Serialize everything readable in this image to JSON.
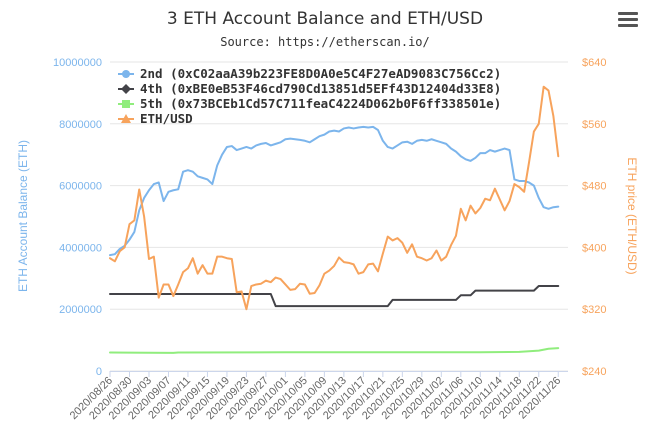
{
  "chart_data": {
    "type": "line",
    "title": "3 ETH Account Balance and ETH/USD",
    "subtitle": "Source: https://etherscan.io/",
    "ylabel_left": "ETH Account Balance (ETH)",
    "ylabel_right": "ETH price (ETH/USD)",
    "ylim_left": [
      0,
      10000000
    ],
    "ylim_right": [
      240,
      640
    ],
    "yticks_left": [
      "0",
      "2000000",
      "4000000",
      "6000000",
      "8000000",
      "10000000"
    ],
    "yticks_right": [
      "$240",
      "$320",
      "$400",
      "$480",
      "$560",
      "$640"
    ],
    "x_start": "2020/08/26",
    "x_end": "2020/11/28",
    "xticks": [
      "2020/08/26",
      "2020/08/30",
      "2020/09/03",
      "2020/09/07",
      "2020/09/11",
      "2020/09/15",
      "2020/09/19",
      "2020/09/23",
      "2020/09/27",
      "2020/10/01",
      "2020/10/05",
      "2020/10/09",
      "2020/10/13",
      "2020/10/17",
      "2020/10/21",
      "2020/10/25",
      "2020/10/29",
      "2020/11/02",
      "2020/11/06",
      "2020/11/10",
      "2020/11/14",
      "2020/11/18",
      "2020/11/22",
      "2020/11/26"
    ],
    "grid": true,
    "legend_position": "top-left",
    "series": [
      {
        "name": "2nd (0xC02aaA39b223FE8D0A0e5C4F27eAD9083C756Cc2)",
        "axis": "left",
        "color": "#7cb5ec",
        "marker": "circle",
        "points": [
          [
            "2020/08/26",
            3750000
          ],
          [
            "2020/08/27",
            3780000
          ],
          [
            "2020/08/28",
            3950000
          ],
          [
            "2020/08/29",
            4050000
          ],
          [
            "2020/08/30",
            4250000
          ],
          [
            "2020/08/31",
            4500000
          ],
          [
            "2020/09/01",
            5200000
          ],
          [
            "2020/09/02",
            5600000
          ],
          [
            "2020/09/03",
            5850000
          ],
          [
            "2020/09/04",
            6050000
          ],
          [
            "2020/09/05",
            6100000
          ],
          [
            "2020/09/06",
            5500000
          ],
          [
            "2020/09/07",
            5800000
          ],
          [
            "2020/09/08",
            5850000
          ],
          [
            "2020/09/09",
            5880000
          ],
          [
            "2020/09/10",
            6450000
          ],
          [
            "2020/09/11",
            6500000
          ],
          [
            "2020/09/12",
            6450000
          ],
          [
            "2020/09/13",
            6300000
          ],
          [
            "2020/09/14",
            6250000
          ],
          [
            "2020/09/15",
            6200000
          ],
          [
            "2020/09/16",
            6050000
          ],
          [
            "2020/09/17",
            6650000
          ],
          [
            "2020/09/18",
            7000000
          ],
          [
            "2020/09/19",
            7250000
          ],
          [
            "2020/09/20",
            7280000
          ],
          [
            "2020/09/21",
            7150000
          ],
          [
            "2020/09/22",
            7200000
          ],
          [
            "2020/09/23",
            7250000
          ],
          [
            "2020/09/24",
            7200000
          ],
          [
            "2020/09/25",
            7300000
          ],
          [
            "2020/09/26",
            7350000
          ],
          [
            "2020/09/27",
            7380000
          ],
          [
            "2020/09/28",
            7300000
          ],
          [
            "2020/09/29",
            7350000
          ],
          [
            "2020/09/30",
            7400000
          ],
          [
            "2020/10/01",
            7500000
          ],
          [
            "2020/10/02",
            7520000
          ],
          [
            "2020/10/03",
            7500000
          ],
          [
            "2020/10/04",
            7480000
          ],
          [
            "2020/10/05",
            7450000
          ],
          [
            "2020/10/06",
            7400000
          ],
          [
            "2020/10/07",
            7500000
          ],
          [
            "2020/10/08",
            7600000
          ],
          [
            "2020/10/09",
            7650000
          ],
          [
            "2020/10/10",
            7750000
          ],
          [
            "2020/10/11",
            7780000
          ],
          [
            "2020/10/12",
            7750000
          ],
          [
            "2020/10/13",
            7850000
          ],
          [
            "2020/10/14",
            7880000
          ],
          [
            "2020/10/15",
            7850000
          ],
          [
            "2020/10/16",
            7880000
          ],
          [
            "2020/10/17",
            7900000
          ],
          [
            "2020/10/18",
            7880000
          ],
          [
            "2020/10/19",
            7900000
          ],
          [
            "2020/10/20",
            7800000
          ],
          [
            "2020/10/21",
            7450000
          ],
          [
            "2020/10/22",
            7250000
          ],
          [
            "2020/10/23",
            7200000
          ],
          [
            "2020/10/24",
            7300000
          ],
          [
            "2020/10/25",
            7400000
          ],
          [
            "2020/10/26",
            7420000
          ],
          [
            "2020/10/27",
            7350000
          ],
          [
            "2020/10/28",
            7450000
          ],
          [
            "2020/10/29",
            7480000
          ],
          [
            "2020/10/30",
            7450000
          ],
          [
            "2020/10/31",
            7500000
          ],
          [
            "2020/11/01",
            7450000
          ],
          [
            "2020/11/02",
            7400000
          ],
          [
            "2020/11/03",
            7350000
          ],
          [
            "2020/11/04",
            7200000
          ],
          [
            "2020/11/05",
            7100000
          ],
          [
            "2020/11/06",
            6950000
          ],
          [
            "2020/11/07",
            6850000
          ],
          [
            "2020/11/08",
            6800000
          ],
          [
            "2020/11/09",
            6900000
          ],
          [
            "2020/11/10",
            7050000
          ],
          [
            "2020/11/11",
            7050000
          ],
          [
            "2020/11/12",
            7150000
          ],
          [
            "2020/11/13",
            7100000
          ],
          [
            "2020/11/14",
            7150000
          ],
          [
            "2020/11/15",
            7200000
          ],
          [
            "2020/11/16",
            7150000
          ],
          [
            "2020/11/17",
            6200000
          ],
          [
            "2020/11/18",
            6150000
          ],
          [
            "2020/11/19",
            6150000
          ],
          [
            "2020/11/20",
            6100000
          ],
          [
            "2020/11/21",
            6000000
          ],
          [
            "2020/11/22",
            5600000
          ],
          [
            "2020/11/23",
            5300000
          ],
          [
            "2020/11/24",
            5250000
          ],
          [
            "2020/11/25",
            5300000
          ],
          [
            "2020/11/26",
            5320000
          ]
        ]
      },
      {
        "name": "4th (0xBE0eB53F46cd790Cd13851d5EFf43D12404d33E8)",
        "axis": "left",
        "color": "#434348",
        "marker": "diamond",
        "points": [
          [
            "2020/08/26",
            2490000
          ],
          [
            "2020/09/28",
            2490000
          ],
          [
            "2020/09/29",
            2100000
          ],
          [
            "2020/10/22",
            2100000
          ],
          [
            "2020/10/23",
            2300000
          ],
          [
            "2020/11/05",
            2300000
          ],
          [
            "2020/11/06",
            2450000
          ],
          [
            "2020/11/08",
            2450000
          ],
          [
            "2020/11/09",
            2600000
          ],
          [
            "2020/11/21",
            2600000
          ],
          [
            "2020/11/22",
            2750000
          ],
          [
            "2020/11/26",
            2750000
          ]
        ]
      },
      {
        "name": "5th (0x73BCEb1Cd57C711feaC4224D062b0F6ff338501e)",
        "axis": "left",
        "color": "#90ed7d",
        "marker": "square",
        "points": [
          [
            "2020/08/26",
            600000
          ],
          [
            "2020/09/03",
            590000
          ],
          [
            "2020/09/08",
            585000
          ],
          [
            "2020/09/09",
            600000
          ],
          [
            "2020/10/01",
            605000
          ],
          [
            "2020/11/10",
            605000
          ],
          [
            "2020/11/18",
            620000
          ],
          [
            "2020/11/22",
            660000
          ],
          [
            "2020/11/24",
            720000
          ],
          [
            "2020/11/26",
            740000
          ]
        ]
      },
      {
        "name": "ETH/USD",
        "axis": "right",
        "color": "#f7a35c",
        "marker": "triangle",
        "points": [
          [
            "2020/08/26",
            386
          ],
          [
            "2020/08/27",
            382
          ],
          [
            "2020/08/28",
            395
          ],
          [
            "2020/08/29",
            400
          ],
          [
            "2020/08/30",
            430
          ],
          [
            "2020/08/31",
            435
          ],
          [
            "2020/09/01",
            475
          ],
          [
            "2020/09/02",
            440
          ],
          [
            "2020/09/03",
            385
          ],
          [
            "2020/09/04",
            388
          ],
          [
            "2020/09/05",
            335
          ],
          [
            "2020/09/06",
            352
          ],
          [
            "2020/09/07",
            352
          ],
          [
            "2020/09/08",
            337
          ],
          [
            "2020/09/09",
            352
          ],
          [
            "2020/09/10",
            368
          ],
          [
            "2020/09/11",
            373
          ],
          [
            "2020/09/12",
            386
          ],
          [
            "2020/09/13",
            366
          ],
          [
            "2020/09/14",
            377
          ],
          [
            "2020/09/15",
            366
          ],
          [
            "2020/09/16",
            366
          ],
          [
            "2020/09/17",
            388
          ],
          [
            "2020/09/18",
            388
          ],
          [
            "2020/09/19",
            386
          ],
          [
            "2020/09/20",
            385
          ],
          [
            "2020/09/21",
            342
          ],
          [
            "2020/09/22",
            343
          ],
          [
            "2020/09/23",
            320
          ],
          [
            "2020/09/24",
            350
          ],
          [
            "2020/09/25",
            352
          ],
          [
            "2020/09/26",
            353
          ],
          [
            "2020/09/27",
            357
          ],
          [
            "2020/09/28",
            355
          ],
          [
            "2020/09/29",
            361
          ],
          [
            "2020/09/30",
            359
          ],
          [
            "2020/10/01",
            352
          ],
          [
            "2020/10/02",
            345
          ],
          [
            "2020/10/03",
            346
          ],
          [
            "2020/10/04",
            353
          ],
          [
            "2020/10/05",
            352
          ],
          [
            "2020/10/06",
            340
          ],
          [
            "2020/10/07",
            341
          ],
          [
            "2020/10/08",
            351
          ],
          [
            "2020/10/09",
            366
          ],
          [
            "2020/10/10",
            370
          ],
          [
            "2020/10/11",
            376
          ],
          [
            "2020/10/12",
            387
          ],
          [
            "2020/10/13",
            381
          ],
          [
            "2020/10/14",
            380
          ],
          [
            "2020/10/15",
            378
          ],
          [
            "2020/10/16",
            366
          ],
          [
            "2020/10/17",
            368
          ],
          [
            "2020/10/18",
            378
          ],
          [
            "2020/10/19",
            379
          ],
          [
            "2020/10/20",
            369
          ],
          [
            "2020/10/21",
            392
          ],
          [
            "2020/10/22",
            414
          ],
          [
            "2020/10/23",
            409
          ],
          [
            "2020/10/24",
            412
          ],
          [
            "2020/10/25",
            406
          ],
          [
            "2020/10/26",
            393
          ],
          [
            "2020/10/27",
            404
          ],
          [
            "2020/10/28",
            388
          ],
          [
            "2020/10/29",
            386
          ],
          [
            "2020/10/30",
            383
          ],
          [
            "2020/10/31",
            386
          ],
          [
            "2020/11/01",
            396
          ],
          [
            "2020/11/02",
            383
          ],
          [
            "2020/11/03",
            388
          ],
          [
            "2020/11/04",
            403
          ],
          [
            "2020/11/05",
            415
          ],
          [
            "2020/11/06",
            450
          ],
          [
            "2020/11/07",
            435
          ],
          [
            "2020/11/08",
            454
          ],
          [
            "2020/11/09",
            444
          ],
          [
            "2020/11/10",
            451
          ],
          [
            "2020/11/11",
            463
          ],
          [
            "2020/11/12",
            461
          ],
          [
            "2020/11/13",
            476
          ],
          [
            "2020/11/14",
            462
          ],
          [
            "2020/11/15",
            448
          ],
          [
            "2020/11/16",
            460
          ],
          [
            "2020/11/17",
            482
          ],
          [
            "2020/11/18",
            478
          ],
          [
            "2020/11/19",
            472
          ],
          [
            "2020/11/20",
            510
          ],
          [
            "2020/11/21",
            550
          ],
          [
            "2020/11/22",
            560
          ],
          [
            "2020/11/23",
            608
          ],
          [
            "2020/11/24",
            603
          ],
          [
            "2020/11/25",
            570
          ],
          [
            "2020/11/26",
            518
          ]
        ]
      }
    ]
  },
  "menu": {
    "icon": "hamburger-menu-icon"
  }
}
